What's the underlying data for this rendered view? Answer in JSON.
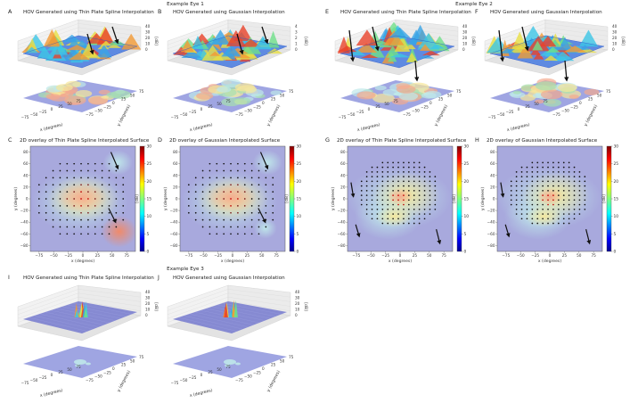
{
  "figure": {
    "eye_labels": [
      "Example Eye 1",
      "Example Eye 2",
      "Example Eye 3"
    ],
    "panel_letters": [
      "A",
      "B",
      "C",
      "D",
      "E",
      "F",
      "G",
      "H",
      "I",
      "J"
    ]
  },
  "colors": {
    "background_fill": "#a8a9dd",
    "point_color": "#111111",
    "arrow_color": "#111111"
  },
  "chart_data": [
    {
      "id": "A",
      "type": "heatmap",
      "title": "HOV Generated using Thin Plate Spline Interpolation",
      "subtype": "3d-surface",
      "xlabel": "x (degrees)",
      "ylabel": "y (degrees)",
      "zlabel": "[dB]",
      "x_ticks": [
        "−75",
        "−50",
        "−25",
        "0",
        "25",
        "50",
        "75"
      ],
      "y_ticks": [
        "−75",
        "−50",
        "−25",
        "0",
        "25",
        "50",
        "75"
      ],
      "z_ticks": [
        "0",
        "10",
        "20",
        "30",
        "40"
      ],
      "arrows": 2
    },
    {
      "id": "B",
      "type": "heatmap",
      "title": "HOV Generated using Gaussian Interpolation",
      "subtype": "3d-surface",
      "xlabel": "x (degrees)",
      "ylabel": "y (degrees)",
      "zlabel": "[dB]",
      "x_ticks": [
        "−75",
        "−50",
        "−25",
        "0",
        "25",
        "50",
        "75"
      ],
      "y_ticks": [
        "−75",
        "−50",
        "−25",
        "0",
        "25",
        "50",
        "75"
      ],
      "z_ticks": [
        "0",
        "1",
        "2",
        "3",
        "4"
      ],
      "arrows": 2
    },
    {
      "id": "C",
      "type": "heatmap",
      "title": "2D overlay of Thin Plate Spline Interpolated Surface",
      "xlabel": "x (degrees)",
      "ylabel": "y (degrees)",
      "colorbar_label": "[dB]",
      "xlim": [
        -90,
        90
      ],
      "ylim": [
        -90,
        90
      ],
      "x_ticks": [
        -75,
        -50,
        -25,
        0,
        25,
        50,
        75
      ],
      "y_ticks": [
        -80,
        -60,
        -40,
        -20,
        0,
        20,
        40,
        60,
        80
      ],
      "colorbar_ticks": [
        0,
        5,
        10,
        15,
        20,
        25,
        30
      ],
      "arrows": 2
    },
    {
      "id": "D",
      "type": "heatmap",
      "title": "2D overlay of Gaussian Interpolated Surface",
      "xlabel": "x (degrees)",
      "ylabel": "y (degrees)",
      "colorbar_label": "[dB]",
      "xlim": [
        -90,
        90
      ],
      "ylim": [
        -90,
        90
      ],
      "x_ticks": [
        -75,
        -50,
        -25,
        0,
        25,
        50,
        75
      ],
      "y_ticks": [
        -80,
        -60,
        -40,
        -20,
        0,
        20,
        40,
        60,
        80
      ],
      "colorbar_ticks": [
        0,
        5,
        10,
        15,
        20,
        25,
        30
      ],
      "arrows": 2
    },
    {
      "id": "E",
      "type": "heatmap",
      "title": "HOV Generated using Thin Plate Spline Interpolation",
      "subtype": "3d-surface",
      "xlabel": "x (degrees)",
      "ylabel": "y (degrees)",
      "zlabel": "[dB]",
      "x_ticks": [
        "−75",
        "−50",
        "−25",
        "0",
        "25",
        "50",
        "75"
      ],
      "y_ticks": [
        "−75",
        "−50",
        "−25",
        "0",
        "25",
        "50",
        "75"
      ],
      "z_ticks": [
        "0",
        "10",
        "20",
        "30",
        "40"
      ],
      "arrows": 3
    },
    {
      "id": "F",
      "type": "heatmap",
      "title": "HOV Generated using Gaussian Interpolation",
      "subtype": "3d-surface",
      "xlabel": "x (degrees)",
      "ylabel": "y (degrees)",
      "zlabel": "[dB]",
      "x_ticks": [
        "−75",
        "−50",
        "−25",
        "0",
        "25",
        "50",
        "75"
      ],
      "y_ticks": [
        "−75",
        "−50",
        "−25",
        "0",
        "25",
        "50",
        "75"
      ],
      "z_ticks": [
        "0",
        "10",
        "20",
        "30",
        "40"
      ],
      "arrows": 3
    },
    {
      "id": "G",
      "type": "heatmap",
      "title": "2D overlay of Thin Plate Spline Interpolated Surface",
      "xlabel": "x (degrees)",
      "ylabel": "y (degrees)",
      "colorbar_label": "[dB]",
      "xlim": [
        -90,
        90
      ],
      "ylim": [
        -90,
        90
      ],
      "x_ticks": [
        -75,
        -50,
        -25,
        0,
        25,
        50,
        75
      ],
      "y_ticks": [
        -80,
        -60,
        -40,
        -20,
        0,
        20,
        40,
        60,
        80
      ],
      "colorbar_ticks": [
        0,
        5,
        10,
        15,
        20,
        25,
        30
      ],
      "arrows": 3
    },
    {
      "id": "H",
      "type": "heatmap",
      "title": "2D overlay of Gaussian Interpolated Surface",
      "xlabel": "x (degrees)",
      "ylabel": "y (degrees)",
      "colorbar_label": "[dB]",
      "xlim": [
        -90,
        90
      ],
      "ylim": [
        -90,
        90
      ],
      "x_ticks": [
        -75,
        -50,
        -25,
        0,
        25,
        50,
        75
      ],
      "y_ticks": [
        -80,
        -60,
        -40,
        -20,
        0,
        20,
        40,
        60,
        80
      ],
      "colorbar_ticks": [
        0,
        5,
        10,
        15,
        20,
        25,
        30
      ],
      "arrows": 3
    },
    {
      "id": "I",
      "type": "heatmap",
      "title": "HOV Generated using Thin Plate Spline Interpolation",
      "subtype": "3d-surface",
      "xlabel": "x (degrees)",
      "ylabel": "y (degrees)",
      "zlabel": "[dB]",
      "x_ticks": [
        "−75",
        "−50",
        "−25",
        "0",
        "25",
        "50",
        "75"
      ],
      "y_ticks": [
        "−75",
        "−50",
        "−25",
        "0",
        "25",
        "50",
        "75"
      ],
      "z_ticks": [
        "0",
        "10",
        "20",
        "30",
        "40"
      ],
      "arrows": 0
    },
    {
      "id": "J",
      "type": "heatmap",
      "title": "HOV Generated using Gaussian Interpolation",
      "subtype": "3d-surface",
      "xlabel": "x (degrees)",
      "ylabel": "y (degrees)",
      "zlabel": "[dB]",
      "x_ticks": [
        "−75",
        "−50",
        "−25",
        "0",
        "25",
        "50",
        "75"
      ],
      "y_ticks": [
        "−75",
        "−50",
        "−25",
        "0",
        "25",
        "50",
        "75"
      ],
      "z_ticks": [
        "0",
        "10",
        "20",
        "30",
        "40"
      ],
      "arrows": 0
    }
  ]
}
